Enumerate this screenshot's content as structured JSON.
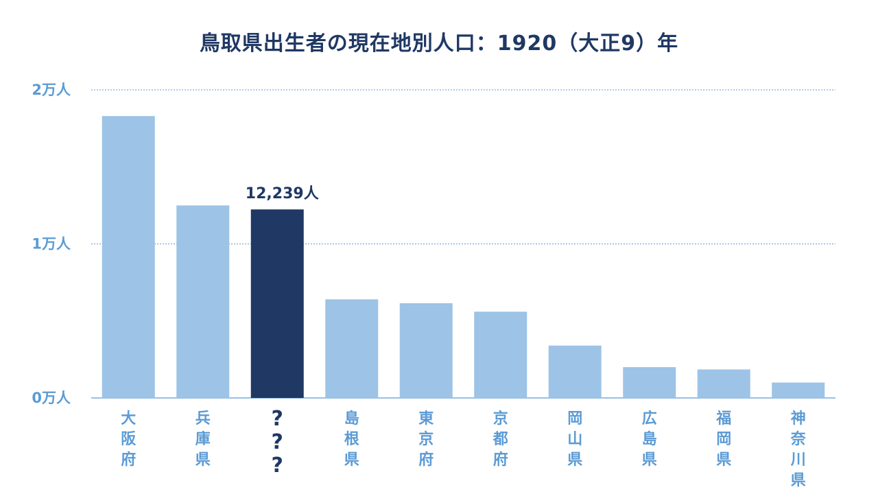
{
  "chart_data": {
    "type": "bar",
    "title": "鳥取県出生者の現在地別人口：1920（大正9）年",
    "categories": [
      "大阪府",
      "兵庫県",
      "???",
      "島根県",
      "東京府",
      "京都府",
      "岡山県",
      "広島県",
      "福岡県",
      "神奈川県"
    ],
    "values": [
      18300,
      12500,
      12239,
      6400,
      6150,
      5600,
      3400,
      2000,
      1850,
      1000
    ],
    "highlight_index": 2,
    "data_labels": [
      {
        "index": 2,
        "text": "12,239人"
      }
    ],
    "ylim": [
      0,
      20000
    ],
    "yticks": [
      {
        "value": 0,
        "label": "0万人"
      },
      {
        "value": 10000,
        "label": "1万人"
      },
      {
        "value": 20000,
        "label": "2万人"
      }
    ],
    "grid": true,
    "xlabel": "",
    "ylabel": "",
    "colors": {
      "bar": "#9dc3e6",
      "highlight": "#1f3864",
      "grid": "#5b9bd5",
      "axis_text": "#5b9bd5",
      "title": "#1f3864"
    }
  }
}
